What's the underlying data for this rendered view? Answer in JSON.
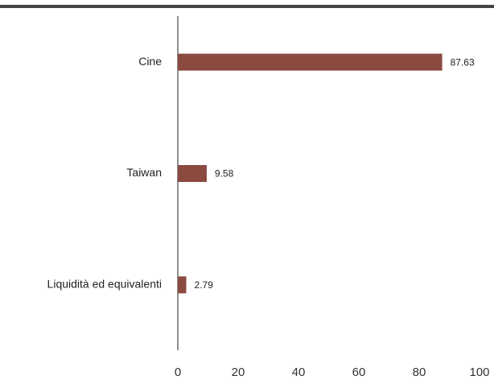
{
  "chart_data": {
    "type": "bar",
    "orientation": "horizontal",
    "categories": [
      "Cine",
      "Taiwan",
      "Liquidità ed equivalenti"
    ],
    "values": [
      87.63,
      9.58,
      2.79
    ],
    "color": "#8a4a40",
    "xlim": [
      0,
      100
    ],
    "xticks": [
      0,
      20,
      40,
      60,
      80,
      100
    ],
    "grid": false
  }
}
